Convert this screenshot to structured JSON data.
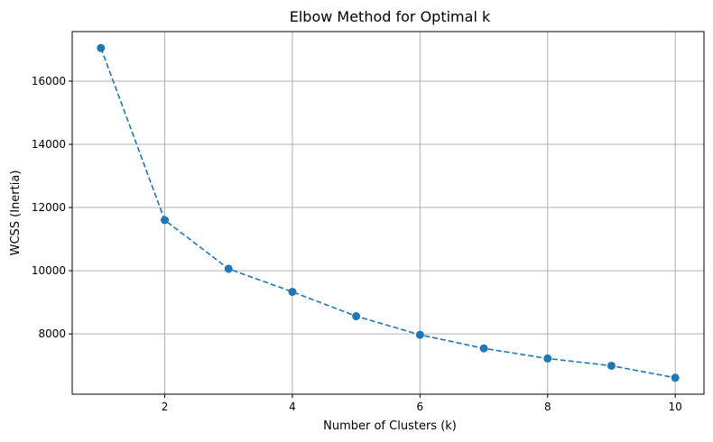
{
  "chart_data": {
    "type": "line",
    "title": "Elbow Method for Optimal k",
    "xlabel": "Number of Clusters (k)",
    "ylabel": "WCSS (Inertia)",
    "x": [
      1,
      2,
      3,
      4,
      5,
      6,
      7,
      8,
      9,
      10
    ],
    "series": [
      {
        "values": [
          17050,
          11600,
          10060,
          9330,
          8560,
          7970,
          7540,
          7220,
          6990,
          6610
        ],
        "color": "#1f77b4",
        "line_style": "dashed",
        "marker": "circle"
      }
    ],
    "xlim": [
      0.55,
      10.45
    ],
    "ylim": [
      6090,
      17570
    ],
    "xticks": [
      2,
      4,
      6,
      8,
      10
    ],
    "yticks": [
      8000,
      10000,
      12000,
      14000,
      16000
    ],
    "grid": true,
    "legend": "none"
  }
}
